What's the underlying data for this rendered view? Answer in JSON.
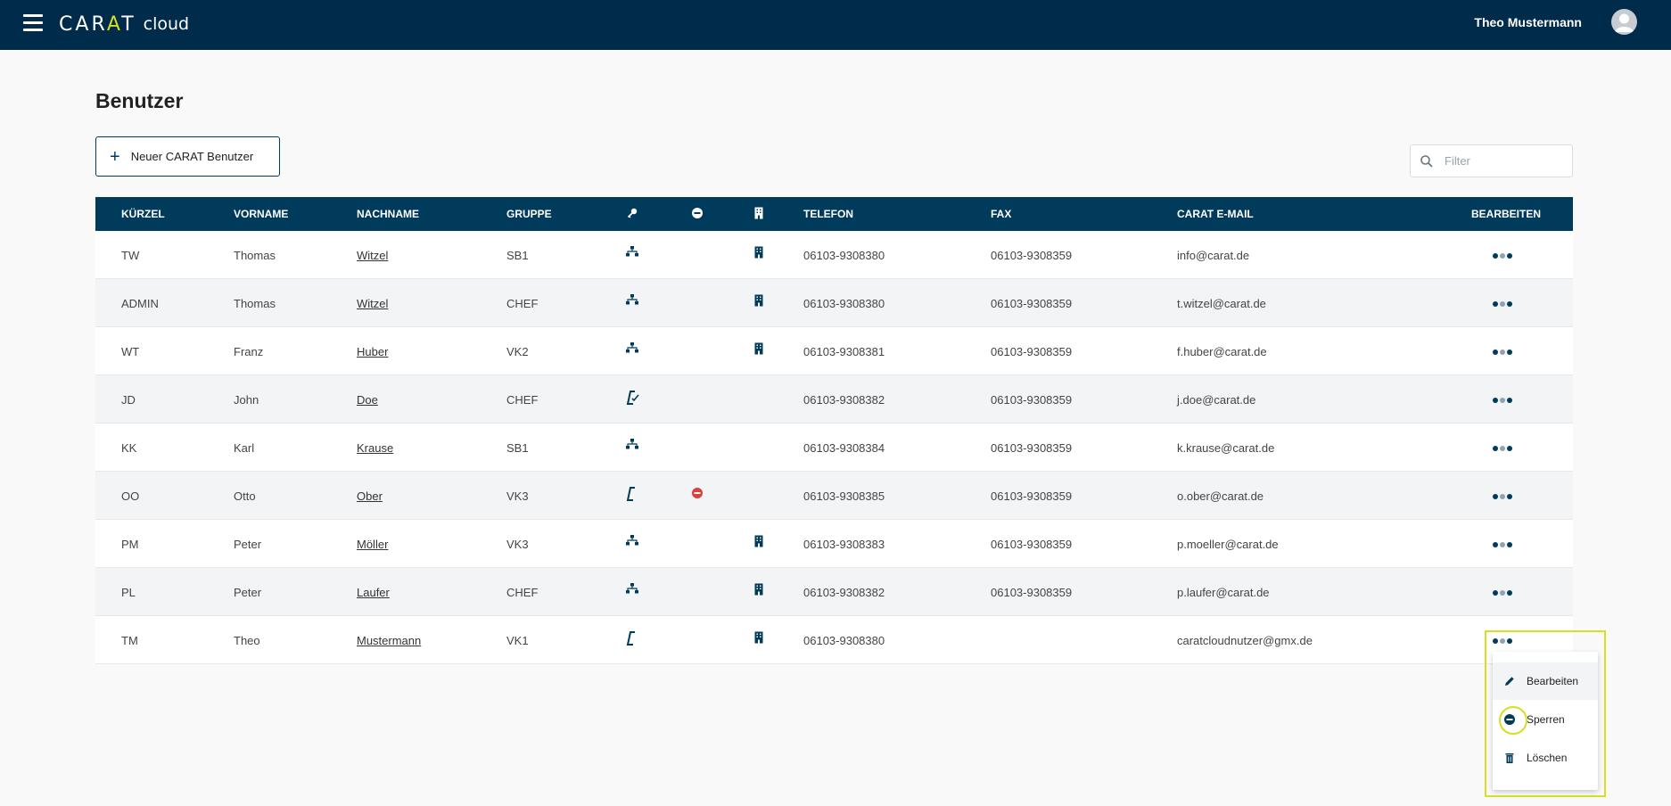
{
  "app": {
    "logo_text": "CARAT",
    "logo_sub": "cloud",
    "user_name": "Theo Mustermann"
  },
  "page": {
    "title": "Benutzer",
    "new_button_label": "Neuer CARAT Benutzer",
    "filter_placeholder": "Filter"
  },
  "table": {
    "headers": {
      "kuerzel": "KÜRZEL",
      "vorname": "VORNAME",
      "nachname": "NACHNAME",
      "gruppe": "GRUPPE",
      "telefon": "TELEFON",
      "fax": "FAX",
      "email": "CARAT E-MAIL",
      "bearbeiten": "BEARBEITEN"
    },
    "header_icons": [
      "key-icon",
      "blocked-icon",
      "building-icon"
    ],
    "rows": [
      {
        "kuerzel": "TW",
        "vorname": "Thomas",
        "nachname": "Witzel",
        "gruppe": "SB1",
        "role_icon": "hierarchy-icon",
        "blocked": false,
        "building": true,
        "telefon": "06103-9308380",
        "fax": "06103-9308359",
        "email": "info@carat.de"
      },
      {
        "kuerzel": "ADMIN",
        "vorname": "Thomas",
        "nachname": "Witzel",
        "gruppe": "CHEF",
        "role_icon": "hierarchy-icon",
        "blocked": false,
        "building": true,
        "telefon": "06103-9308380",
        "fax": "06103-9308359",
        "email": "t.witzel@carat.de"
      },
      {
        "kuerzel": "WT",
        "vorname": "Franz",
        "nachname": "Huber",
        "gruppe": "VK2",
        "role_icon": "hierarchy-icon",
        "blocked": false,
        "building": true,
        "telefon": "06103-9308381",
        "fax": "06103-9308359",
        "email": "f.huber@carat.de"
      },
      {
        "kuerzel": "JD",
        "vorname": "John",
        "nachname": "Doe",
        "gruppe": "CHEF",
        "role_icon": "carat-check-icon",
        "blocked": false,
        "building": false,
        "telefon": "06103-9308382",
        "fax": "06103-9308359",
        "email": "j.doe@carat.de"
      },
      {
        "kuerzel": "KK",
        "vorname": "Karl",
        "nachname": "Krause",
        "gruppe": "SB1",
        "role_icon": "hierarchy-icon",
        "blocked": false,
        "building": false,
        "telefon": "06103-9308384",
        "fax": "06103-9308359",
        "email": "k.krause@carat.de"
      },
      {
        "kuerzel": "OO",
        "vorname": "Otto",
        "nachname": "Ober",
        "gruppe": "VK3",
        "role_icon": "carat-icon",
        "blocked": true,
        "building": false,
        "telefon": "06103-9308385",
        "fax": "06103-9308359",
        "email": "o.ober@carat.de"
      },
      {
        "kuerzel": "PM",
        "vorname": "Peter",
        "nachname": "Möller",
        "gruppe": "VK3",
        "role_icon": "hierarchy-icon",
        "blocked": false,
        "building": true,
        "telefon": "06103-9308383",
        "fax": "06103-9308359",
        "email": "p.moeller@carat.de"
      },
      {
        "kuerzel": "PL",
        "vorname": "Peter",
        "nachname": "Laufer",
        "gruppe": "CHEF",
        "role_icon": "hierarchy-icon",
        "blocked": false,
        "building": true,
        "telefon": "06103-9308382",
        "fax": "06103-9308359",
        "email": "p.laufer@carat.de"
      },
      {
        "kuerzel": "TM",
        "vorname": "Theo",
        "nachname": "Mustermann",
        "gruppe": "VK1",
        "role_icon": "carat-icon",
        "blocked": false,
        "building": true,
        "telefon": "06103-9308380",
        "fax": "",
        "email": "caratcloudnutzer@gmx.de"
      }
    ]
  },
  "context_menu": {
    "items": [
      {
        "label": "Bearbeiten",
        "icon": "pencil-icon"
      },
      {
        "label": "Sperren",
        "icon": "block-icon"
      },
      {
        "label": "Löschen",
        "icon": "trash-icon"
      }
    ]
  },
  "colors": {
    "navy": "#002b4b",
    "header_navy": "#003b5c",
    "accent_yellow": "#d7df23",
    "blocked_red": "#d9413a"
  }
}
